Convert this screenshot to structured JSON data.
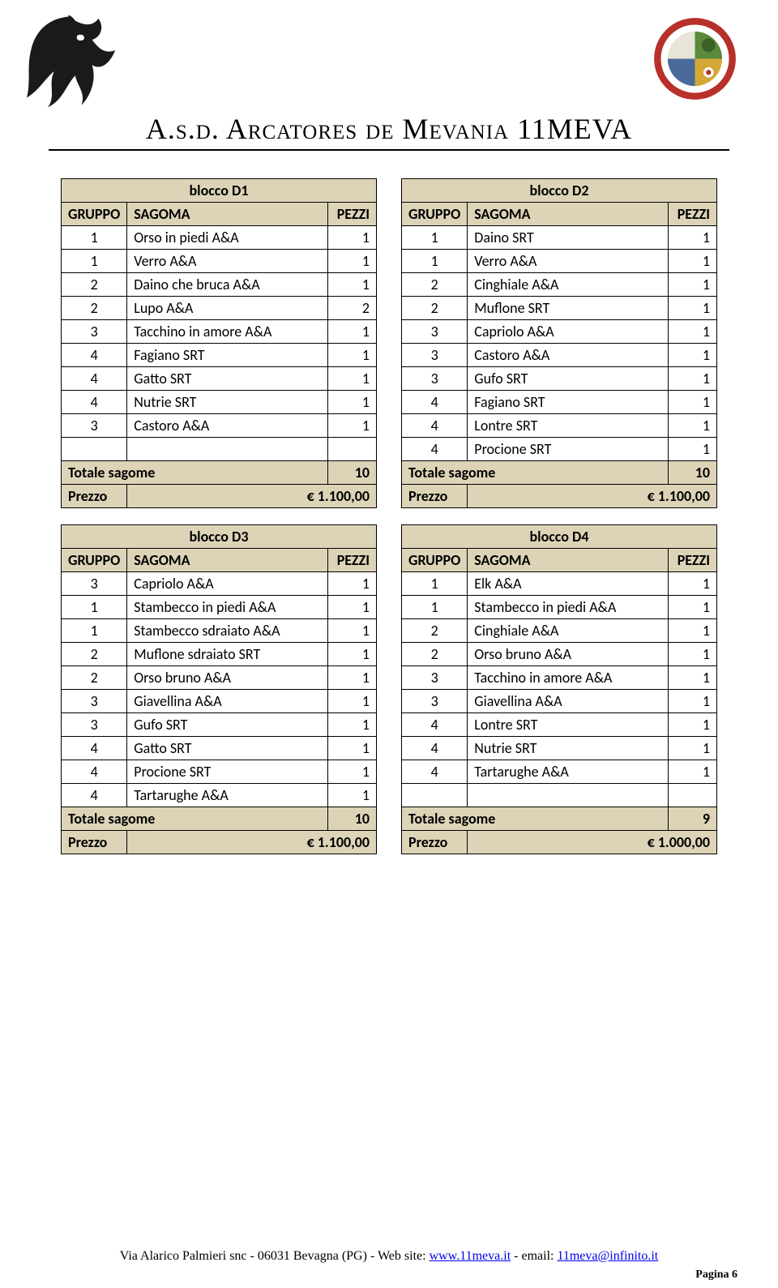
{
  "header": {
    "title": "A.s.d. Arcatores de Mevania 11MEVA"
  },
  "colheads": {
    "gruppo": "GRUPPO",
    "sagoma": "SAGOMA",
    "pezzi": "PEZZI"
  },
  "labels": {
    "totale": "Totale sagome",
    "prezzo": "Prezzo"
  },
  "blocks": [
    {
      "title": "blocco   D1",
      "rows": [
        {
          "g": "1",
          "s": "Orso in piedi A&A",
          "p": "1"
        },
        {
          "g": "1",
          "s": "Verro A&A",
          "p": "1"
        },
        {
          "g": "2",
          "s": "Daino che bruca A&A",
          "p": "1"
        },
        {
          "g": "2",
          "s": "Lupo A&A",
          "p": "2"
        },
        {
          "g": "3",
          "s": "Tacchino in amore A&A",
          "p": "1"
        },
        {
          "g": "4",
          "s": "Fagiano SRT",
          "p": "1"
        },
        {
          "g": "4",
          "s": "Gatto SRT",
          "p": "1"
        },
        {
          "g": "4",
          "s": "Nutrie SRT",
          "p": "1"
        },
        {
          "g": "3",
          "s": "Castoro A&A",
          "p": "1"
        }
      ],
      "empty_rows": 1,
      "totale": "10",
      "prezzo": "€             1.100,00"
    },
    {
      "title": "blocco   D2",
      "rows": [
        {
          "g": "1",
          "s": "Daino SRT",
          "p": "1"
        },
        {
          "g": "1",
          "s": "Verro A&A",
          "p": "1"
        },
        {
          "g": "2",
          "s": "Cinghiale A&A",
          "p": "1"
        },
        {
          "g": "2",
          "s": "Muflone SRT",
          "p": "1"
        },
        {
          "g": "3",
          "s": "Capriolo A&A",
          "p": "1"
        },
        {
          "g": "3",
          "s": "Castoro A&A",
          "p": "1"
        },
        {
          "g": "3",
          "s": "Gufo SRT",
          "p": "1"
        },
        {
          "g": "4",
          "s": "Fagiano SRT",
          "p": "1"
        },
        {
          "g": "4",
          "s": "Lontre SRT",
          "p": "1"
        },
        {
          "g": "4",
          "s": "Procione SRT",
          "p": "1"
        }
      ],
      "empty_rows": 0,
      "totale": "10",
      "prezzo": "€             1.100,00"
    },
    {
      "title": "blocco   D3",
      "rows": [
        {
          "g": "3",
          "s": "Capriolo A&A",
          "p": "1"
        },
        {
          "g": "1",
          "s": "Stambecco in piedi A&A",
          "p": "1"
        },
        {
          "g": "1",
          "s": "Stambecco sdraiato A&A",
          "p": "1"
        },
        {
          "g": "2",
          "s": "Muflone sdraiato SRT",
          "p": "1"
        },
        {
          "g": "2",
          "s": "Orso bruno A&A",
          "p": "1"
        },
        {
          "g": "3",
          "s": "Giavellina A&A",
          "p": "1"
        },
        {
          "g": "3",
          "s": "Gufo SRT",
          "p": "1"
        },
        {
          "g": "4",
          "s": "Gatto SRT",
          "p": "1"
        },
        {
          "g": "4",
          "s": "Procione SRT",
          "p": "1"
        },
        {
          "g": "4",
          "s": "Tartarughe A&A",
          "p": "1"
        }
      ],
      "empty_rows": 0,
      "totale": "10",
      "prezzo": "€             1.100,00"
    },
    {
      "title": "blocco   D4",
      "rows": [
        {
          "g": "1",
          "s": "Elk A&A",
          "p": "1"
        },
        {
          "g": "1",
          "s": "Stambecco in piedi A&A",
          "p": "1"
        },
        {
          "g": "2",
          "s": "Cinghiale A&A",
          "p": "1"
        },
        {
          "g": "2",
          "s": "Orso bruno A&A",
          "p": "1"
        },
        {
          "g": "3",
          "s": "Tacchino in amore A&A",
          "p": "1"
        },
        {
          "g": "3",
          "s": "Giavellina A&A",
          "p": "1"
        },
        {
          "g": "4",
          "s": "Lontre SRT",
          "p": "1"
        },
        {
          "g": "4",
          "s": "Nutrie SRT",
          "p": "1"
        },
        {
          "g": "4",
          "s": "Tartarughe A&A",
          "p": "1"
        }
      ],
      "empty_rows": 1,
      "totale": "9",
      "prezzo": "€             1.000,00"
    }
  ],
  "footer": {
    "text_prefix": "Via Alarico Palmieri snc - 06031 Bevagna (PG) - Web site: ",
    "link1": "www.11meva.it",
    "text_mid": " - email: ",
    "link2": "11meva@infinito.it",
    "page": "Pagina 6"
  }
}
